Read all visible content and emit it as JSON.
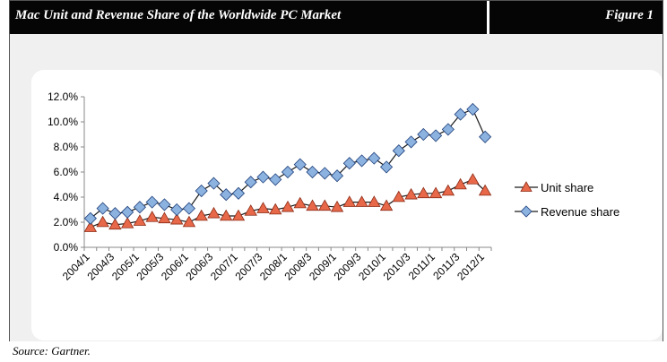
{
  "header": {
    "title": "Mac Unit and Revenue Share of the Worldwide PC Market",
    "figure_label": "Figure 1"
  },
  "footer": {
    "source": "Source: Gartner."
  },
  "colors": {
    "unit_fill": "#e8694a",
    "unit_stroke": "#8b2a14",
    "revenue_fill": "#8cb2e0",
    "revenue_stroke": "#1e3f7a",
    "line": "#1a1a1a"
  },
  "chart_data": {
    "type": "line",
    "title": "",
    "xlabel": "",
    "ylabel": "",
    "ylim": [
      0,
      12
    ],
    "y_ticks": [
      "0.0%",
      "2.0%",
      "4.0%",
      "6.0%",
      "8.0%",
      "10.0%",
      "12.0%"
    ],
    "x": [
      "2004/1",
      "2004/2",
      "2004/3",
      "2004/4",
      "2005/1",
      "2005/2",
      "2005/3",
      "2005/4",
      "2006/1",
      "2006/2",
      "2006/3",
      "2006/4",
      "2007/1",
      "2007/2",
      "2007/3",
      "2007/4",
      "2008/1",
      "2008/2",
      "2008/3",
      "2008/4",
      "2009/1",
      "2009/2",
      "2009/3",
      "2009/4",
      "2010/1",
      "2010/2",
      "2010/3",
      "2010/4",
      "2011/1",
      "2011/2",
      "2011/3",
      "2011/4",
      "2012/1"
    ],
    "x_tick_labels": [
      "2004/1",
      "2004/3",
      "2005/1",
      "2005/3",
      "2006/1",
      "2006/3",
      "2007/1",
      "2007/3",
      "2008/1",
      "2008/3",
      "2009/1",
      "2009/3",
      "2010/1",
      "2010/3",
      "2011/1",
      "2011/3",
      "2012/1"
    ],
    "series": [
      {
        "name": "Unit share",
        "marker": "triangle",
        "values": [
          1.6,
          2.0,
          1.8,
          1.9,
          2.1,
          2.4,
          2.3,
          2.2,
          2.0,
          2.5,
          2.7,
          2.5,
          2.5,
          2.9,
          3.1,
          3.0,
          3.2,
          3.5,
          3.3,
          3.3,
          3.2,
          3.6,
          3.6,
          3.6,
          3.3,
          4.0,
          4.2,
          4.3,
          4.3,
          4.5,
          5.0,
          5.4,
          4.5
        ]
      },
      {
        "name": "Revenue share",
        "marker": "diamond",
        "values": [
          2.3,
          3.1,
          2.7,
          2.8,
          3.2,
          3.6,
          3.4,
          3.0,
          3.1,
          4.5,
          5.1,
          4.2,
          4.3,
          5.2,
          5.6,
          5.4,
          6.0,
          6.6,
          6.0,
          5.9,
          5.7,
          6.7,
          6.9,
          7.1,
          6.4,
          7.7,
          8.4,
          9.0,
          8.9,
          9.4,
          10.6,
          11.0,
          8.8
        ]
      }
    ],
    "legend_position": "right",
    "grid": false
  }
}
